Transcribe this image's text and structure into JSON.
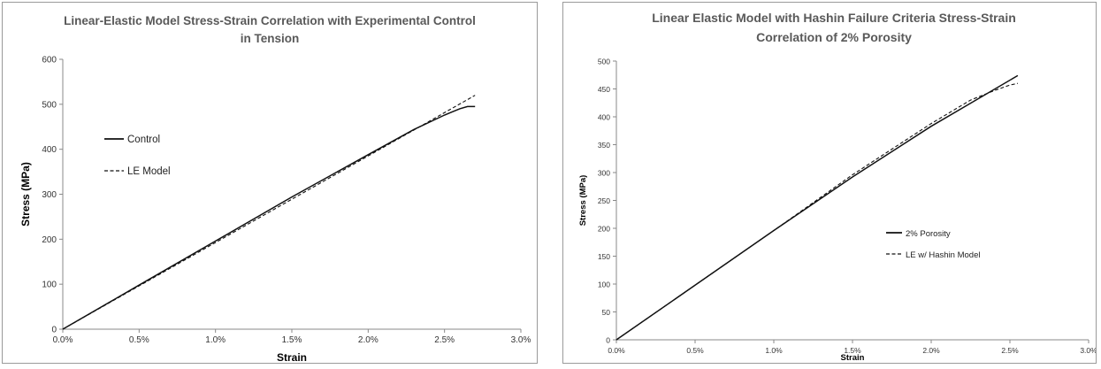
{
  "chart_data": [
    {
      "type": "line",
      "title": [
        "Linear-Elastic Model Stress-Strain Correlation with Experimental Control",
        "in Tension"
      ],
      "xlabel": "Strain",
      "ylabel": "Stress (MPa)",
      "xlim": [
        0,
        3.0
      ],
      "ylim": [
        0,
        600
      ],
      "xticks": [
        0,
        0.5,
        1.0,
        1.5,
        2.0,
        2.5,
        3.0
      ],
      "xtick_labels": [
        "0.0%",
        "0.5%",
        "1.0%",
        "1.5%",
        "2.0%",
        "2.5%",
        "3.0%"
      ],
      "yticks": [
        0,
        100,
        200,
        300,
        400,
        500,
        600
      ],
      "ytick_labels": [
        "0",
        "100",
        "200",
        "300",
        "400",
        "500",
        "600"
      ],
      "grid": false,
      "legend": "left-middle",
      "series": [
        {
          "name": "Control",
          "style": "solid",
          "x": [
            0,
            0.5,
            1.0,
            1.5,
            2.0,
            2.3,
            2.5,
            2.6,
            2.65,
            2.7
          ],
          "y": [
            0,
            98,
            196,
            294,
            388,
            444,
            476,
            490,
            495,
            495
          ]
        },
        {
          "name": "LE Model",
          "style": "dashed",
          "x": [
            0,
            2.7
          ],
          "y": [
            0,
            520
          ]
        }
      ]
    },
    {
      "type": "line",
      "title": [
        "Linear Elastic Model with Hashin Failure Criteria Stress-Strain",
        "Correlation of 2% Porosity"
      ],
      "xlabel": "Strain",
      "ylabel": "Stress (MPa)",
      "xlim": [
        0,
        3.0
      ],
      "ylim": [
        0,
        500
      ],
      "xticks": [
        0,
        0.5,
        1.0,
        1.5,
        2.0,
        2.5,
        3.0
      ],
      "xtick_labels": [
        "0.0%",
        "0.5%",
        "1.0%",
        "1.5%",
        "2.0%",
        "2.5%",
        "3.0%"
      ],
      "yticks": [
        0,
        50,
        100,
        150,
        200,
        250,
        300,
        350,
        400,
        450,
        500
      ],
      "ytick_labels": [
        "0",
        "50",
        "100",
        "150",
        "200",
        "250",
        "300",
        "350",
        "400",
        "450",
        "500"
      ],
      "grid": false,
      "legend": "center-right",
      "series": [
        {
          "name": "2% Porosity",
          "style": "solid",
          "x": [
            0,
            0.5,
            1.0,
            1.5,
            2.0,
            2.55
          ],
          "y": [
            0,
            98,
            196,
            292,
            383,
            474
          ]
        },
        {
          "name": "LE w/  Hashin  Model",
          "style": "dashed",
          "x": [
            0,
            0.5,
            1.0,
            1.5,
            2.0,
            2.25,
            2.4,
            2.5,
            2.55
          ],
          "y": [
            0,
            98,
            196,
            296,
            388,
            430,
            447,
            457,
            460
          ]
        }
      ]
    }
  ]
}
